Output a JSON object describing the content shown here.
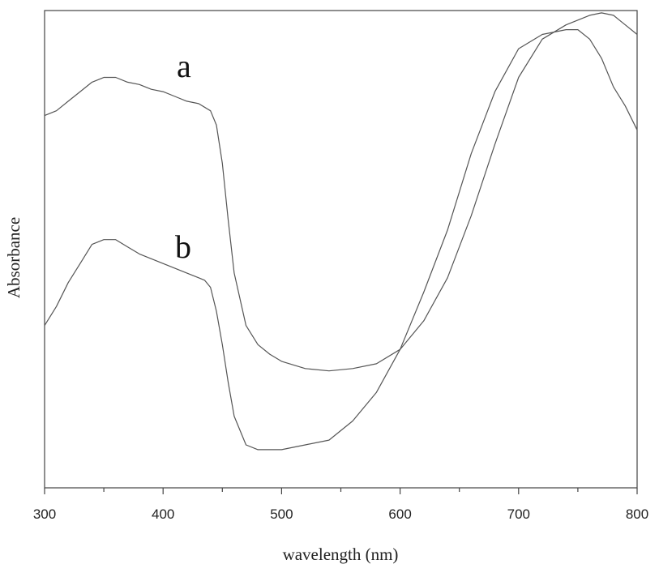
{
  "chart_data": {
    "type": "line",
    "xlabel": "wavelength (nm)",
    "ylabel": "Absorbance",
    "xlim": [
      300,
      800
    ],
    "ylim": [
      0,
      1
    ],
    "x_ticks": [
      "300",
      "400",
      "500",
      "600",
      "700",
      "800"
    ],
    "y_ticks_shown": false,
    "grid": false,
    "legend": "none",
    "series": [
      {
        "name": "a",
        "x": [
          300,
          310,
          320,
          330,
          340,
          350,
          360,
          370,
          380,
          390,
          400,
          410,
          420,
          430,
          440,
          445,
          450,
          455,
          460,
          470,
          480,
          490,
          500,
          520,
          540,
          560,
          580,
          600,
          620,
          640,
          660,
          680,
          700,
          720,
          740,
          760,
          770,
          780,
          790,
          800
        ],
        "y": [
          0.78,
          0.79,
          0.81,
          0.83,
          0.85,
          0.86,
          0.86,
          0.85,
          0.845,
          0.835,
          0.83,
          0.82,
          0.81,
          0.805,
          0.79,
          0.76,
          0.68,
          0.56,
          0.45,
          0.34,
          0.3,
          0.28,
          0.265,
          0.25,
          0.245,
          0.25,
          0.26,
          0.29,
          0.35,
          0.44,
          0.57,
          0.72,
          0.86,
          0.94,
          0.97,
          0.99,
          0.995,
          0.99,
          0.97,
          0.95
        ]
      },
      {
        "name": "b",
        "x": [
          300,
          310,
          320,
          330,
          340,
          350,
          360,
          370,
          380,
          390,
          400,
          410,
          420,
          430,
          435,
          440,
          445,
          450,
          455,
          460,
          470,
          480,
          490,
          500,
          520,
          540,
          560,
          580,
          600,
          620,
          640,
          660,
          680,
          700,
          720,
          740,
          750,
          760,
          770,
          780,
          790,
          800
        ],
        "y": [
          0.34,
          0.38,
          0.43,
          0.47,
          0.51,
          0.52,
          0.52,
          0.505,
          0.49,
          0.48,
          0.47,
          0.46,
          0.45,
          0.44,
          0.435,
          0.42,
          0.37,
          0.3,
          0.22,
          0.15,
          0.09,
          0.08,
          0.08,
          0.08,
          0.09,
          0.1,
          0.14,
          0.2,
          0.29,
          0.41,
          0.54,
          0.7,
          0.83,
          0.92,
          0.95,
          0.96,
          0.96,
          0.94,
          0.9,
          0.84,
          0.8,
          0.75
        ]
      }
    ]
  }
}
